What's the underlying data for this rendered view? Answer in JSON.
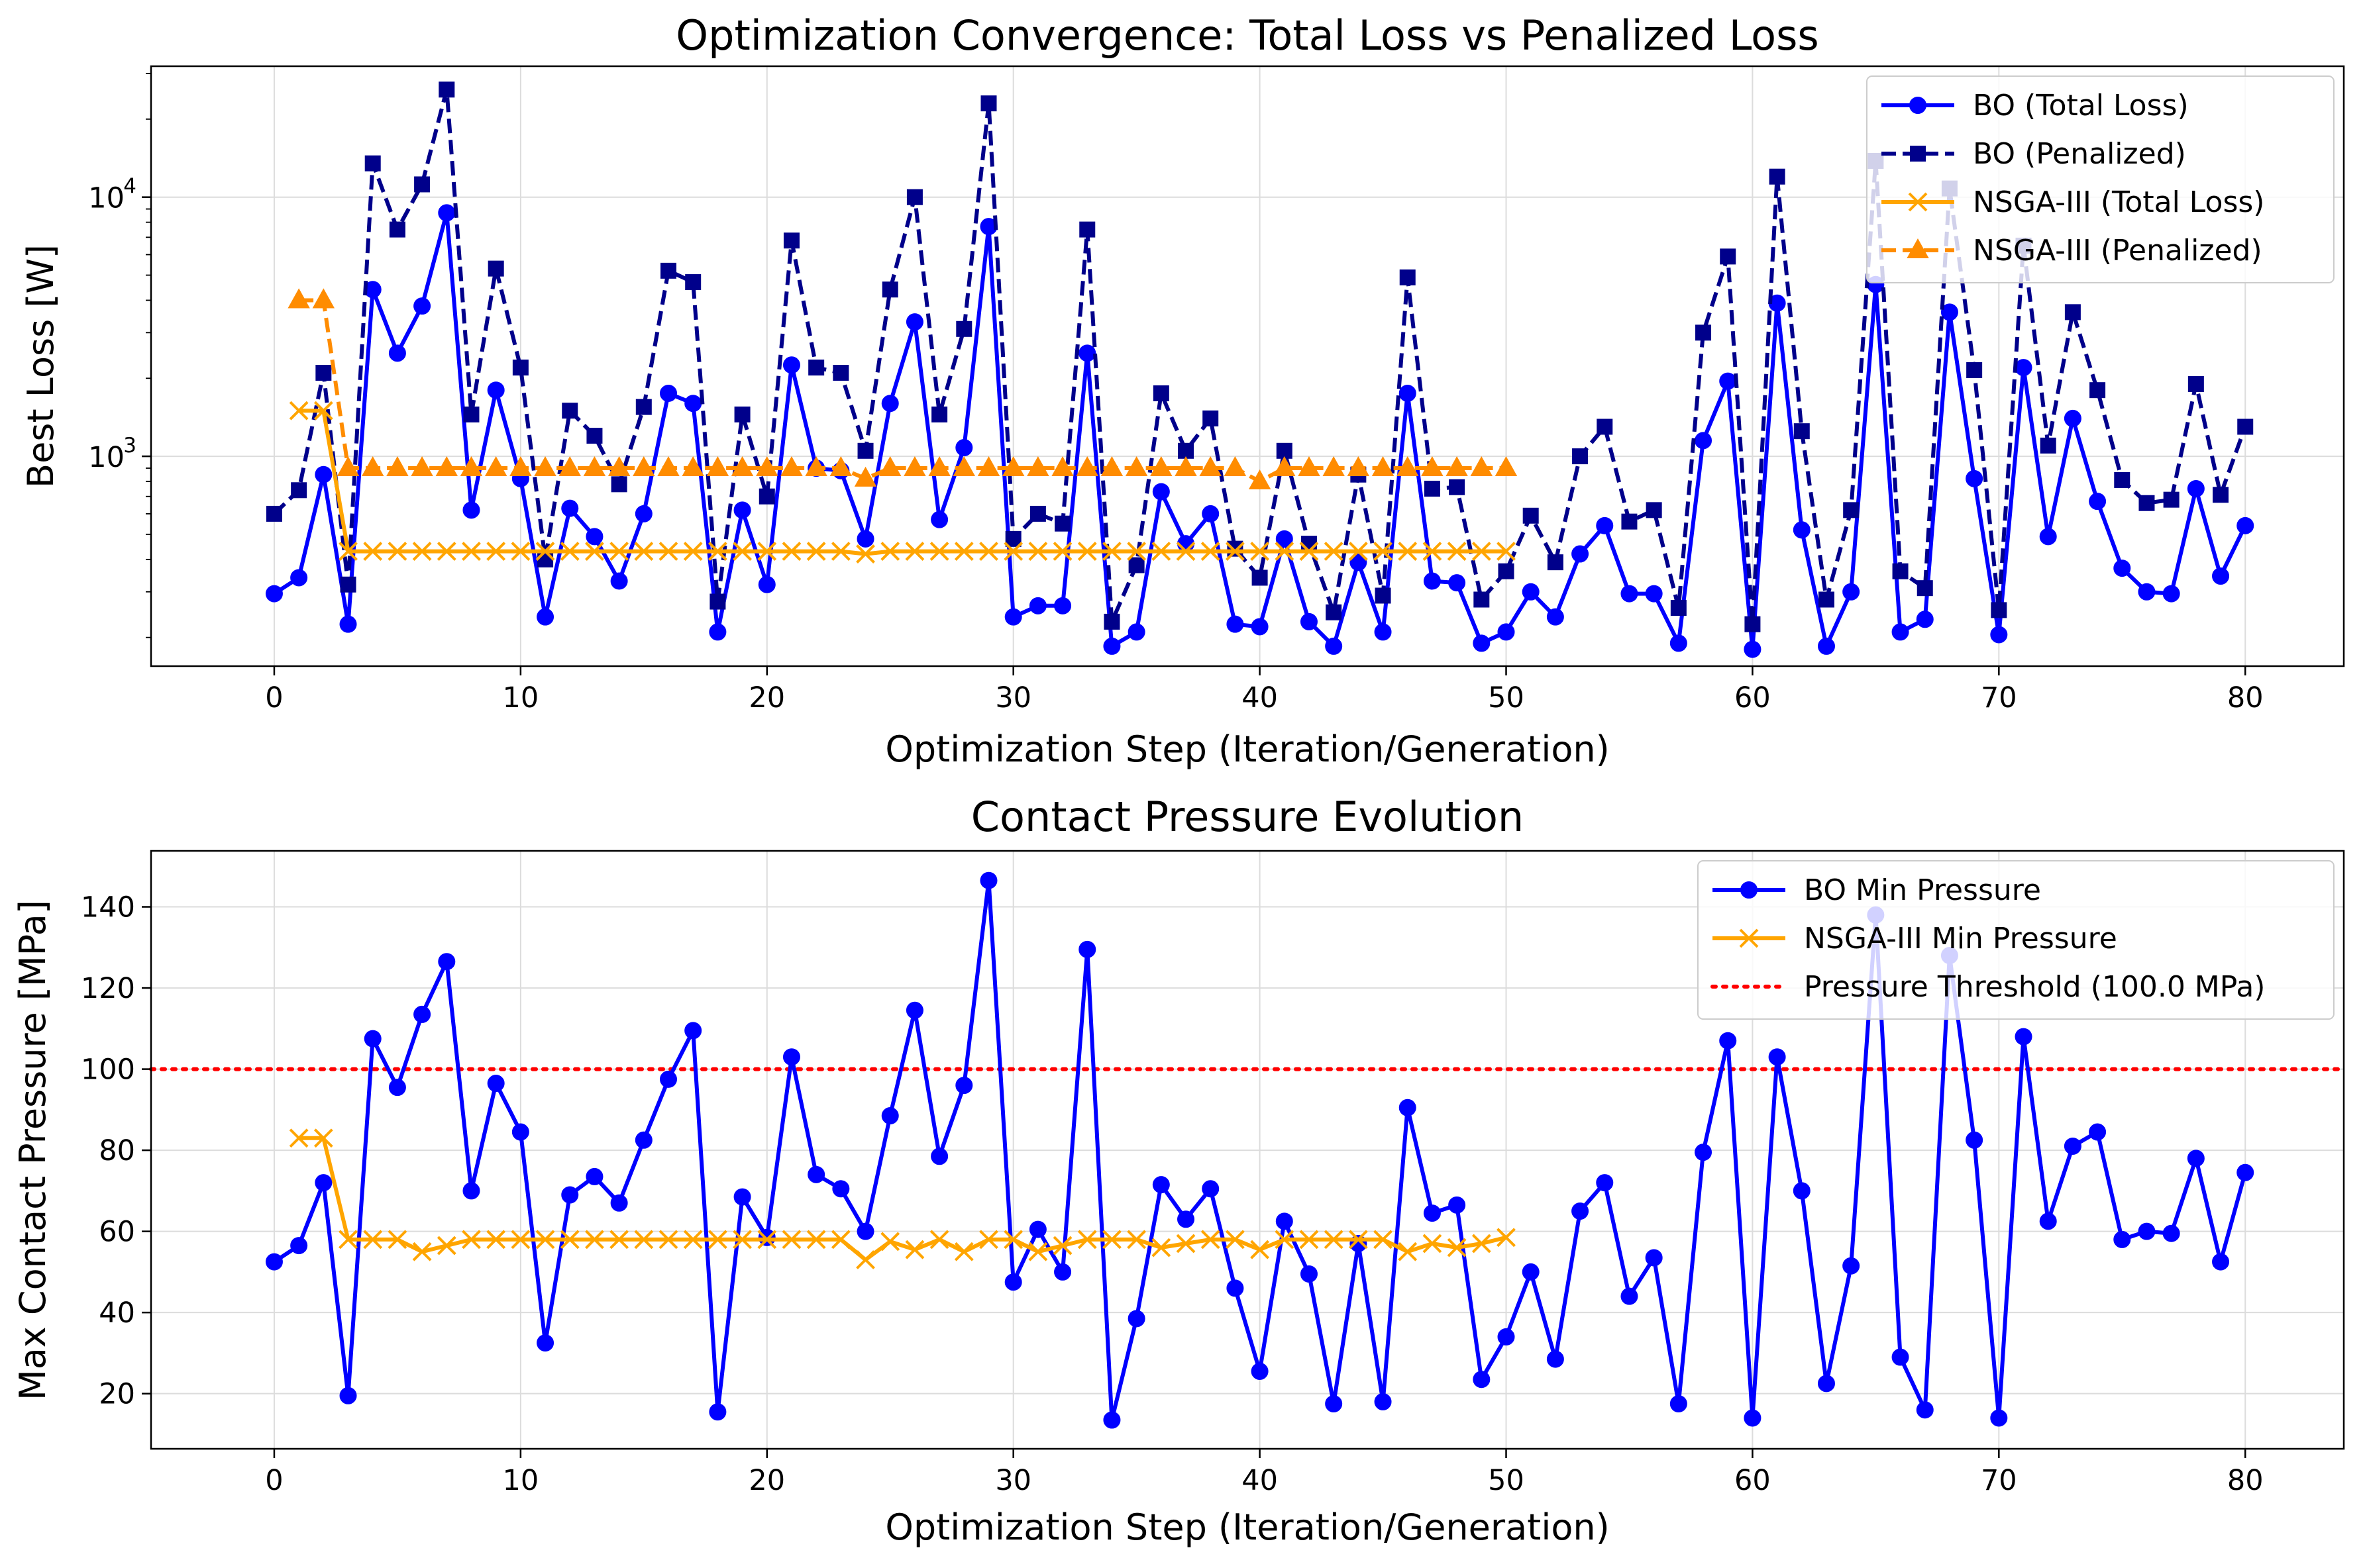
{
  "chart_data": [
    {
      "type": "line",
      "title": "Optimization Convergence: Total Loss vs Penalized Loss",
      "xlabel": "Optimization Step (Iteration/Generation)",
      "ylabel": "Best Loss [W]",
      "yscale": "log",
      "xlim": [
        -5,
        84
      ],
      "ylim": [
        155,
        32000
      ],
      "xticks": [
        0,
        10,
        20,
        30,
        40,
        50,
        60,
        70,
        80
      ],
      "yticks": [
        {
          "value": 1000,
          "base": "10",
          "exp": "3"
        },
        {
          "value": 10000,
          "base": "10",
          "exp": "4"
        }
      ],
      "grid": true,
      "legend_position": "upper right",
      "series": [
        {
          "name": "BO (Total Loss)",
          "color": "#0000ff",
          "marker": "circle",
          "linestyle": "solid",
          "x": [
            0,
            1,
            2,
            3,
            4,
            5,
            6,
            7,
            8,
            9,
            10,
            11,
            12,
            13,
            14,
            15,
            16,
            17,
            18,
            19,
            20,
            21,
            22,
            23,
            24,
            25,
            26,
            27,
            28,
            29,
            30,
            31,
            32,
            33,
            34,
            35,
            36,
            37,
            38,
            39,
            40,
            41,
            42,
            43,
            44,
            45,
            46,
            47,
            48,
            49,
            50,
            51,
            52,
            53,
            54,
            55,
            56,
            57,
            58,
            59,
            60,
            61,
            62,
            63,
            64,
            65,
            66,
            67,
            68,
            69,
            70,
            71,
            72,
            73,
            74,
            75,
            76,
            77,
            78,
            79,
            80
          ],
          "values": [
            295,
            340,
            850,
            225,
            4400,
            2500,
            3800,
            8700,
            620,
            1800,
            820,
            240,
            630,
            490,
            330,
            600,
            1750,
            1600,
            210,
            620,
            320,
            2250,
            900,
            880,
            480,
            1600,
            3300,
            570,
            1080,
            7700,
            240,
            265,
            265,
            2500,
            185,
            210,
            730,
            460,
            600,
            225,
            220,
            480,
            230,
            185,
            390,
            210,
            1750,
            330,
            325,
            190,
            210,
            300,
            240,
            420,
            540,
            295,
            295,
            190,
            1150,
            1950,
            180,
            3900,
            520,
            185,
            300,
            4600,
            210,
            235,
            3600,
            820,
            205,
            2200,
            490,
            1400,
            670,
            370,
            300,
            295,
            750,
            345,
            540
          ]
        },
        {
          "name": "BO (Penalized)",
          "color": "#00008b",
          "marker": "square",
          "linestyle": "dashed",
          "x": [
            0,
            1,
            2,
            3,
            4,
            5,
            6,
            7,
            8,
            9,
            10,
            11,
            12,
            13,
            14,
            15,
            16,
            17,
            18,
            19,
            20,
            21,
            22,
            23,
            24,
            25,
            26,
            27,
            28,
            29,
            30,
            31,
            32,
            33,
            34,
            35,
            36,
            37,
            38,
            39,
            40,
            41,
            42,
            43,
            44,
            45,
            46,
            47,
            48,
            49,
            50,
            51,
            52,
            53,
            54,
            55,
            56,
            57,
            58,
            59,
            60,
            61,
            62,
            63,
            64,
            65,
            66,
            67,
            68,
            69,
            70,
            71,
            72,
            73,
            74,
            75,
            76,
            77,
            78,
            79,
            80
          ],
          "values": [
            600,
            740,
            2100,
            320,
            13500,
            7500,
            11200,
            26000,
            1450,
            5300,
            2200,
            400,
            1500,
            1200,
            780,
            1550,
            5200,
            4700,
            275,
            1450,
            700,
            6800,
            2200,
            2100,
            1050,
            4400,
            10000,
            1450,
            3100,
            23000,
            480,
            600,
            550,
            7500,
            230,
            380,
            1750,
            1050,
            1400,
            440,
            340,
            1050,
            460,
            250,
            850,
            290,
            4900,
            750,
            760,
            280,
            360,
            590,
            390,
            1000,
            1300,
            560,
            620,
            260,
            3000,
            5900,
            225,
            12000,
            1250,
            280,
            620,
            13800,
            360,
            310,
            10800,
            2150,
            255,
            6500,
            1100,
            3600,
            1800,
            810,
            660,
            680,
            1900,
            710,
            1300
          ]
        },
        {
          "name": "NSGA-III (Total Loss)",
          "color": "#ffa500",
          "marker": "x",
          "linestyle": "solid",
          "x": [
            1,
            2,
            3,
            4,
            5,
            6,
            7,
            8,
            9,
            10,
            11,
            12,
            13,
            14,
            15,
            16,
            17,
            18,
            19,
            20,
            21,
            22,
            23,
            24,
            25,
            26,
            27,
            28,
            29,
            30,
            31,
            32,
            33,
            34,
            35,
            36,
            37,
            38,
            39,
            40,
            41,
            42,
            43,
            44,
            45,
            46,
            47,
            48,
            49,
            50
          ],
          "values": [
            1500,
            1500,
            430,
            430,
            430,
            430,
            430,
            430,
            430,
            430,
            430,
            430,
            430,
            430,
            430,
            430,
            430,
            430,
            430,
            430,
            430,
            430,
            430,
            420,
            430,
            430,
            430,
            430,
            430,
            430,
            430,
            430,
            430,
            430,
            430,
            430,
            430,
            430,
            430,
            430,
            430,
            430,
            430,
            430,
            430,
            430,
            430,
            430,
            430,
            430
          ]
        },
        {
          "name": "NSGA-III (Penalized)",
          "color": "#ff8c00",
          "marker": "triangle",
          "linestyle": "dashed",
          "x": [
            1,
            2,
            3,
            4,
            5,
            6,
            7,
            8,
            9,
            10,
            11,
            12,
            13,
            14,
            15,
            16,
            17,
            18,
            19,
            20,
            21,
            22,
            23,
            24,
            25,
            26,
            27,
            28,
            29,
            30,
            31,
            32,
            33,
            34,
            35,
            36,
            37,
            38,
            39,
            40,
            41,
            42,
            43,
            44,
            45,
            46,
            47,
            48,
            49,
            50
          ],
          "values": [
            4000,
            4000,
            900,
            900,
            900,
            900,
            900,
            900,
            900,
            900,
            900,
            900,
            900,
            900,
            900,
            900,
            900,
            900,
            900,
            900,
            900,
            900,
            900,
            820,
            900,
            900,
            900,
            900,
            900,
            900,
            900,
            900,
            900,
            900,
            900,
            900,
            900,
            900,
            900,
            800,
            900,
            900,
            900,
            900,
            900,
            900,
            900,
            900,
            900,
            900
          ]
        }
      ]
    },
    {
      "type": "line",
      "title": "Contact Pressure Evolution",
      "xlabel": "Optimization Step (Iteration/Generation)",
      "ylabel": "Max Contact Pressure [MPa]",
      "yscale": "linear",
      "xlim": [
        -5,
        84
      ],
      "ylim": [
        6.4,
        153.8
      ],
      "xticks": [
        0,
        10,
        20,
        30,
        40,
        50,
        60,
        70,
        80
      ],
      "yticks": [
        20,
        40,
        60,
        80,
        100,
        120,
        140
      ],
      "grid": true,
      "legend_position": "upper right",
      "threshold": {
        "name": "Pressure Threshold (100.0 MPa)",
        "value": 100,
        "color": "#ff0000",
        "linestyle": "dotted"
      },
      "series": [
        {
          "name": "BO Min Pressure",
          "color": "#0000ff",
          "marker": "circle",
          "linestyle": "solid",
          "x": [
            0,
            1,
            2,
            3,
            4,
            5,
            6,
            7,
            8,
            9,
            10,
            11,
            12,
            13,
            14,
            15,
            16,
            17,
            18,
            19,
            20,
            21,
            22,
            23,
            24,
            25,
            26,
            27,
            28,
            29,
            30,
            31,
            32,
            33,
            34,
            35,
            36,
            37,
            38,
            39,
            40,
            41,
            42,
            43,
            44,
            45,
            46,
            47,
            48,
            49,
            50,
            51,
            52,
            53,
            54,
            55,
            56,
            57,
            58,
            59,
            60,
            61,
            62,
            63,
            64,
            65,
            66,
            67,
            68,
            69,
            70,
            71,
            72,
            73,
            74,
            75,
            76,
            77,
            78,
            79,
            80
          ],
          "values": [
            52.5,
            56.5,
            72,
            19.5,
            107.5,
            95.5,
            113.5,
            126.5,
            70,
            96.5,
            84.5,
            32.5,
            69,
            73.5,
            67,
            82.5,
            97.5,
            109.5,
            15.5,
            68.5,
            58.5,
            103,
            74,
            70.5,
            60,
            88.5,
            114.5,
            78.5,
            96,
            146.5,
            47.5,
            60.5,
            50,
            129.5,
            13.5,
            38.5,
            71.5,
            63,
            70.5,
            46,
            25.5,
            62.5,
            49.5,
            17.5,
            57,
            18,
            90.5,
            64.5,
            66.5,
            23.5,
            34,
            50,
            28.5,
            65,
            72,
            44,
            53.5,
            17.5,
            79.5,
            107,
            14,
            103,
            70,
            22.5,
            51.5,
            138,
            29,
            16,
            128,
            82.5,
            14,
            108,
            62.5,
            81,
            84.5,
            58,
            60,
            59.5,
            78,
            52.5,
            74.5
          ]
        },
        {
          "name": "NSGA-III Min Pressure",
          "color": "#ffa500",
          "marker": "x",
          "linestyle": "solid",
          "x": [
            1,
            2,
            3,
            4,
            5,
            6,
            7,
            8,
            9,
            10,
            11,
            12,
            13,
            14,
            15,
            16,
            17,
            18,
            19,
            20,
            21,
            22,
            23,
            24,
            25,
            26,
            27,
            28,
            29,
            30,
            31,
            32,
            33,
            34,
            35,
            36,
            37,
            38,
            39,
            40,
            41,
            42,
            43,
            44,
            45,
            46,
            47,
            48,
            49,
            50
          ],
          "values": [
            83,
            83,
            58,
            58,
            58,
            55,
            56.5,
            58,
            58,
            58,
            58,
            58,
            58,
            58,
            58,
            58,
            58,
            58,
            58,
            58,
            58,
            58,
            58,
            53,
            57.5,
            55.5,
            58,
            55,
            58,
            58,
            55,
            56.5,
            58,
            58,
            58,
            56,
            57,
            58,
            58,
            55.5,
            58,
            58,
            58,
            58,
            58,
            55,
            57,
            56,
            57,
            58.5
          ]
        }
      ]
    }
  ]
}
